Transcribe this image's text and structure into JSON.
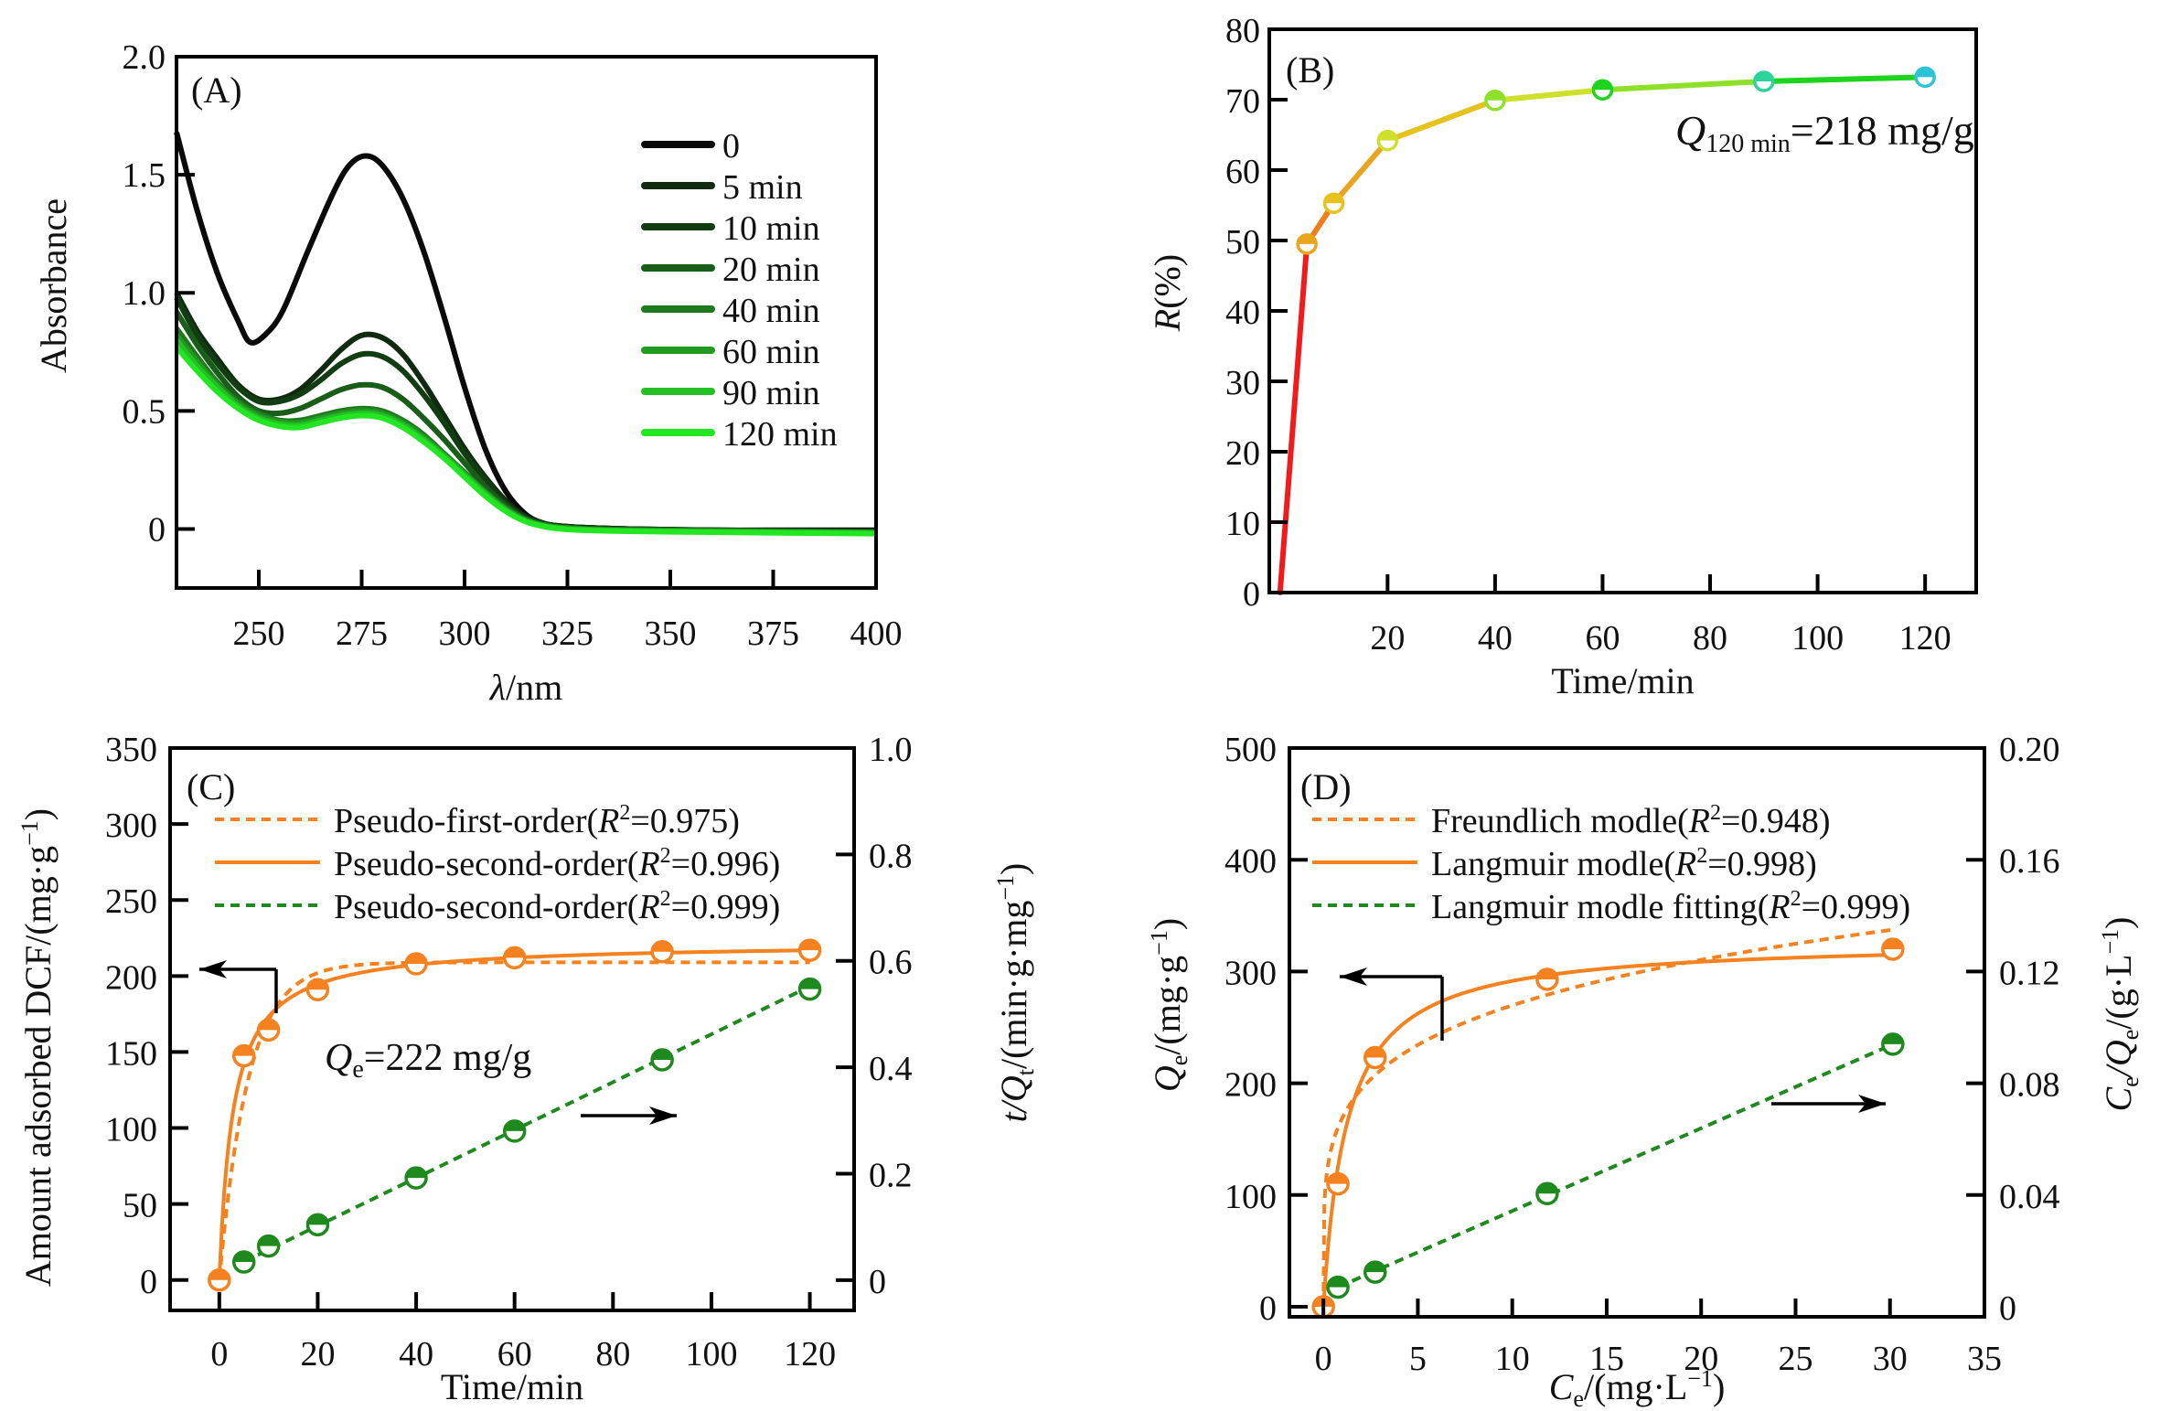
{
  "figure": {
    "panels": [
      "A",
      "B",
      "C",
      "D"
    ]
  },
  "chart_data": [
    {
      "id": "A",
      "type": "line",
      "panel_label": "(A)",
      "xlabel": "λ/nm",
      "ylabel": "Absorbance",
      "xlim": [
        230,
        400
      ],
      "ylim": [
        -0.25,
        2.0
      ],
      "xticks": [
        250,
        275,
        300,
        325,
        350,
        375,
        400
      ],
      "yticks": [
        0,
        0.5,
        1.0,
        1.5,
        2.0
      ],
      "ytick_labels": [
        "0",
        "0.5",
        "1.0",
        "1.5",
        "2.0"
      ],
      "legend_position": "upper-right",
      "series": [
        {
          "name": "0",
          "color": "#0a0a0a",
          "x": [
            230,
            235,
            240,
            245,
            248,
            252,
            256,
            262,
            268,
            272,
            276,
            280,
            285,
            290,
            295,
            300,
            305,
            310,
            315,
            320,
            325,
            330,
            340,
            360,
            380,
            400
          ],
          "y": [
            1.68,
            1.35,
            1.08,
            0.88,
            0.79,
            0.83,
            0.93,
            1.18,
            1.42,
            1.54,
            1.58,
            1.54,
            1.4,
            1.18,
            0.9,
            0.6,
            0.34,
            0.16,
            0.06,
            0.02,
            0.01,
            0.005,
            0.0,
            -0.005,
            -0.005,
            -0.005
          ]
        },
        {
          "name": "5 min",
          "color": "#0f2a0f",
          "x": [
            230,
            235,
            240,
            245,
            250,
            255,
            260,
            265,
            270,
            275,
            280,
            285,
            290,
            295,
            300,
            305,
            310,
            315,
            320,
            325,
            330,
            340,
            360,
            380,
            400
          ],
          "y": [
            1.0,
            0.84,
            0.72,
            0.61,
            0.55,
            0.55,
            0.59,
            0.67,
            0.76,
            0.82,
            0.81,
            0.74,
            0.62,
            0.48,
            0.34,
            0.22,
            0.12,
            0.05,
            0.02,
            0.01,
            0.005,
            0.0,
            -0.005,
            -0.008,
            -0.01
          ]
        },
        {
          "name": "10 min",
          "color": "#123d12",
          "x": [
            230,
            235,
            240,
            245,
            250,
            255,
            260,
            265,
            270,
            275,
            280,
            285,
            290,
            295,
            300,
            305,
            310,
            315,
            320,
            325,
            330,
            340,
            360,
            380,
            400
          ],
          "y": [
            0.98,
            0.82,
            0.7,
            0.6,
            0.54,
            0.54,
            0.57,
            0.63,
            0.7,
            0.74,
            0.73,
            0.67,
            0.57,
            0.45,
            0.32,
            0.21,
            0.11,
            0.05,
            0.02,
            0.01,
            0.005,
            0.0,
            -0.005,
            -0.008,
            -0.01
          ]
        },
        {
          "name": "20 min",
          "color": "#1a5c1a",
          "x": [
            230,
            235,
            240,
            245,
            250,
            255,
            260,
            265,
            270,
            275,
            280,
            285,
            290,
            295,
            300,
            305,
            310,
            315,
            320,
            325,
            330,
            340,
            360,
            380,
            400
          ],
          "y": [
            0.92,
            0.78,
            0.66,
            0.56,
            0.5,
            0.49,
            0.51,
            0.55,
            0.59,
            0.61,
            0.6,
            0.55,
            0.47,
            0.38,
            0.28,
            0.18,
            0.1,
            0.04,
            0.015,
            0.005,
            0.0,
            -0.003,
            -0.006,
            -0.009,
            -0.012
          ]
        },
        {
          "name": "40 min",
          "color": "#1f7a1f",
          "x": [
            230,
            235,
            240,
            245,
            250,
            255,
            260,
            265,
            270,
            275,
            280,
            285,
            290,
            295,
            300,
            305,
            310,
            315,
            320,
            325,
            330,
            340,
            360,
            380,
            400
          ],
          "y": [
            0.85,
            0.73,
            0.62,
            0.54,
            0.49,
            0.46,
            0.46,
            0.48,
            0.5,
            0.51,
            0.5,
            0.46,
            0.4,
            0.32,
            0.24,
            0.16,
            0.09,
            0.04,
            0.015,
            0.005,
            0.0,
            -0.004,
            -0.008,
            -0.011,
            -0.014
          ]
        },
        {
          "name": "60 min",
          "color": "#229a22",
          "x": [
            230,
            235,
            240,
            245,
            250,
            255,
            260,
            265,
            270,
            275,
            280,
            285,
            290,
            295,
            300,
            305,
            310,
            315,
            320,
            325,
            330,
            340,
            360,
            380,
            400
          ],
          "y": [
            0.82,
            0.71,
            0.61,
            0.53,
            0.48,
            0.455,
            0.45,
            0.47,
            0.49,
            0.5,
            0.49,
            0.45,
            0.39,
            0.315,
            0.235,
            0.155,
            0.085,
            0.035,
            0.012,
            0.003,
            -0.002,
            -0.006,
            -0.01,
            -0.013,
            -0.016
          ]
        },
        {
          "name": "90 min",
          "color": "#25c025",
          "x": [
            230,
            235,
            240,
            245,
            250,
            255,
            260,
            265,
            270,
            275,
            280,
            285,
            290,
            295,
            300,
            305,
            310,
            315,
            320,
            325,
            330,
            340,
            360,
            380,
            400
          ],
          "y": [
            0.8,
            0.69,
            0.6,
            0.52,
            0.47,
            0.445,
            0.44,
            0.46,
            0.48,
            0.49,
            0.48,
            0.44,
            0.38,
            0.31,
            0.23,
            0.15,
            0.08,
            0.033,
            0.01,
            0.0,
            -0.004,
            -0.008,
            -0.012,
            -0.015,
            -0.018
          ]
        },
        {
          "name": "120 min",
          "color": "#22e622",
          "x": [
            230,
            235,
            240,
            245,
            250,
            255,
            260,
            265,
            270,
            275,
            280,
            285,
            290,
            295,
            300,
            305,
            310,
            315,
            320,
            325,
            330,
            340,
            360,
            380,
            400
          ],
          "y": [
            0.77,
            0.67,
            0.58,
            0.51,
            0.46,
            0.435,
            0.43,
            0.45,
            0.47,
            0.48,
            0.47,
            0.43,
            0.37,
            0.3,
            0.22,
            0.14,
            0.075,
            0.03,
            0.008,
            -0.002,
            -0.006,
            -0.01,
            -0.014,
            -0.017,
            -0.02
          ]
        }
      ]
    },
    {
      "id": "B",
      "type": "line",
      "panel_label": "(B)",
      "xlabel": "Time/min",
      "ylabel": "R(%)",
      "xlim": [
        -2,
        129.5
      ],
      "ylim": [
        0,
        80
      ],
      "xticks": [
        20,
        40,
        60,
        80,
        100,
        120
      ],
      "yticks": [
        0,
        10,
        20,
        30,
        40,
        50,
        60,
        70,
        80
      ],
      "annotation": {
        "main": "Q",
        "sub": "120 min",
        "rest": "=218 mg/g"
      },
      "series": [
        {
          "name": "R",
          "x": [
            0,
            5,
            10,
            20,
            40,
            60,
            90,
            120
          ],
          "y": [
            0,
            49.5,
            55.3,
            64.2,
            69.9,
            71.4,
            72.6,
            73.2
          ],
          "colors": [
            "#f01c1c",
            "#f07d1a",
            "#e8a51e",
            "#e6c21e",
            "#cfe02c",
            "#8fe02a",
            "#1ed41e",
            "#2ad49a",
            "#2cc4d4"
          ]
        }
      ]
    },
    {
      "id": "C",
      "type": "scatter",
      "panel_label": "(C)",
      "xlabel": "Time/min",
      "ylabel_left": "Amount adsorbed DCF/(mg·g",
      "ylabel_left_sup": "−1",
      "ylabel_left_end": ")",
      "ylabel_right_main": "t/Q",
      "ylabel_right_sub": "t",
      "ylabel_right_rest": "/(min·g·mg",
      "ylabel_right_sup": "−1",
      "ylabel_right_end": ")",
      "xlim": [
        -10,
        129
      ],
      "ylim_left": [
        -20,
        350
      ],
      "ylim_right": [
        -0.057,
        1.0
      ],
      "xticks": [
        0,
        20,
        40,
        60,
        80,
        100,
        120
      ],
      "yticks_left": [
        0,
        50,
        100,
        150,
        200,
        250,
        300,
        350
      ],
      "yticks_right": [
        0,
        0.2,
        0.4,
        0.6,
        0.8,
        1.0
      ],
      "ytick_right_labels": [
        "0",
        "0.2",
        "0.4",
        "0.6",
        "0.8",
        "1.0"
      ],
      "annotation": {
        "main": "Q",
        "sub": "e",
        "rest": "=222 mg/g"
      },
      "legend": [
        {
          "label": "Pseudo-first-order(",
          "r": "R",
          "sup": "2",
          "val": "=0.975)",
          "style": "dotted",
          "color": "#f5821f"
        },
        {
          "label": "Pseudo-second-order(",
          "r": "R",
          "sup": "2",
          "val": "=0.996)",
          "style": "solid",
          "color": "#f5821f"
        },
        {
          "label": "Pseudo-second-order(",
          "r": "R",
          "sup": "2",
          "val": "=0.999)",
          "style": "dotted",
          "color": "#1e8a1e"
        }
      ],
      "series": [
        {
          "name": "Qt (experimental)",
          "axis": "left",
          "color": "#f5821f",
          "x": [
            0,
            5,
            10,
            20,
            40,
            60,
            90,
            120
          ],
          "y": [
            0,
            147.5,
            164.5,
            191,
            208,
            212,
            216,
            217
          ]
        },
        {
          "name": "Pseudo-first-order fit",
          "axis": "left",
          "color": "#f5821f",
          "style": "dotted",
          "model": "pfo",
          "qe": 209,
          "k1": 0.17
        },
        {
          "name": "Pseudo-second-order fit",
          "axis": "left",
          "color": "#f5821f",
          "style": "solid",
          "model": "pso",
          "qe": 222,
          "k2": 0.0016
        },
        {
          "name": "t/Qt (experimental)",
          "axis": "right",
          "color": "#1e8a1e",
          "x": [
            5,
            10,
            20,
            40,
            60,
            90,
            120
          ],
          "y": [
            0.034,
            0.064,
            0.104,
            0.192,
            0.28,
            0.414,
            0.547
          ]
        },
        {
          "name": "Pseudo-second-order linear fit",
          "axis": "right",
          "color": "#1e8a1e",
          "style": "dotted",
          "slope": 0.0045,
          "intercept": 0.012
        }
      ]
    },
    {
      "id": "D",
      "type": "scatter",
      "panel_label": "(D)",
      "xlabel_main": "C",
      "xlabel_sub": "e",
      "xlabel_rest": "/(mg·L",
      "xlabel_sup": "−1",
      "xlabel_end": ")",
      "ylabel_left_main": "Q",
      "ylabel_left_sub": "e",
      "ylabel_left_rest": "/(mg·g",
      "ylabel_left_sup": "−1",
      "ylabel_left_end": ")",
      "ylabel_right_main": "C",
      "ylabel_right_sub": "e",
      "ylabel_right_mid": "/Q",
      "ylabel_right_sub2": "e",
      "ylabel_right_rest": "/(g·L",
      "ylabel_right_sup": "−1",
      "ylabel_right_end": ")",
      "xlim": [
        -1.8,
        35
      ],
      "ylim_left": [
        -9,
        500
      ],
      "ylim_right": [
        -0.0036,
        0.2
      ],
      "xticks": [
        0,
        5,
        10,
        15,
        20,
        25,
        30,
        35
      ],
      "yticks_left": [
        0,
        100,
        200,
        300,
        400,
        500
      ],
      "yticks_right": [
        0,
        0.04,
        0.08,
        0.12,
        0.16,
        0.2
      ],
      "ytick_right_labels": [
        "0",
        "0.04",
        "0.08",
        "0.12",
        "0.16",
        "0.20"
      ],
      "legend": [
        {
          "label": "Freundlich modle(",
          "r": "R",
          "sup": "2",
          "val": "=0.948)",
          "style": "dotted",
          "color": "#f5821f"
        },
        {
          "label": "Langmuir modle(",
          "r": "R",
          "sup": "2",
          "val": "=0.998)",
          "style": "solid",
          "color": "#f5821f"
        },
        {
          "label": "Langmuir modle fitting(",
          "r": "R",
          "sup": "2",
          "val": "=0.999)",
          "style": "dotted",
          "color": "#1e8a1e"
        }
      ],
      "series": [
        {
          "name": "Qe (experimental)",
          "axis": "left",
          "color": "#f5821f",
          "x": [
            0,
            0.77,
            2.74,
            11.85,
            30.15
          ],
          "y": [
            0,
            110,
            223,
            293,
            320
          ]
        },
        {
          "name": "Freundlich fit",
          "axis": "left",
          "color": "#f5821f",
          "style": "dotted",
          "model": "freundlich",
          "kf": 169,
          "inv_n": 0.203
        },
        {
          "name": "Langmuir fit",
          "axis": "left",
          "color": "#f5821f",
          "style": "solid",
          "model": "langmuir",
          "qm": 328,
          "kl": 0.8
        },
        {
          "name": "Ce/Qe (experimental)",
          "axis": "right",
          "color": "#1e8a1e",
          "x": [
            0.77,
            2.74,
            11.85,
            30.15
          ],
          "y": [
            0.007,
            0.0124,
            0.0405,
            0.094
          ]
        },
        {
          "name": "Langmuir linear fit",
          "axis": "right",
          "color": "#1e8a1e",
          "style": "dotted",
          "slope": 0.00296,
          "intercept": 0.0047
        }
      ]
    }
  ]
}
